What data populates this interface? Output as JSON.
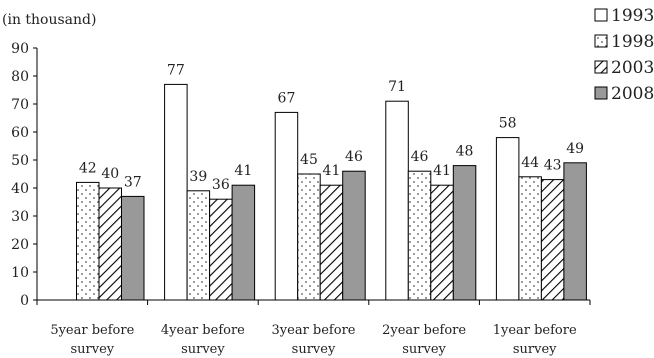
{
  "chart_data": {
    "type": "bar",
    "ylabel": "(in thousand)",
    "ylim": [
      0,
      90
    ],
    "yticks": [
      "0",
      "10",
      "20",
      "30",
      "40",
      "50",
      "60",
      "70",
      "80",
      "90"
    ],
    "categories": [
      [
        "5year before",
        "survey"
      ],
      [
        "4year before",
        "survey"
      ],
      [
        "3year before",
        "survey"
      ],
      [
        "2year before",
        "survey"
      ],
      [
        "1year before",
        "survey"
      ]
    ],
    "series": [
      {
        "name": "1993",
        "values": [
          null,
          77,
          67,
          71,
          58
        ],
        "pattern": "white"
      },
      {
        "name": "1998",
        "values": [
          42,
          39,
          45,
          46,
          44
        ],
        "pattern": "dots"
      },
      {
        "name": "2003",
        "values": [
          40,
          36,
          41,
          41,
          43
        ],
        "pattern": "hatch"
      },
      {
        "name": "2008",
        "values": [
          37,
          41,
          46,
          48,
          49
        ],
        "pattern": "gray"
      }
    ],
    "legend_position": "top-right",
    "grid": false,
    "colors": {
      "bar_fill_gray": "#999999",
      "stroke": "#000000",
      "dots": "#555555"
    }
  }
}
